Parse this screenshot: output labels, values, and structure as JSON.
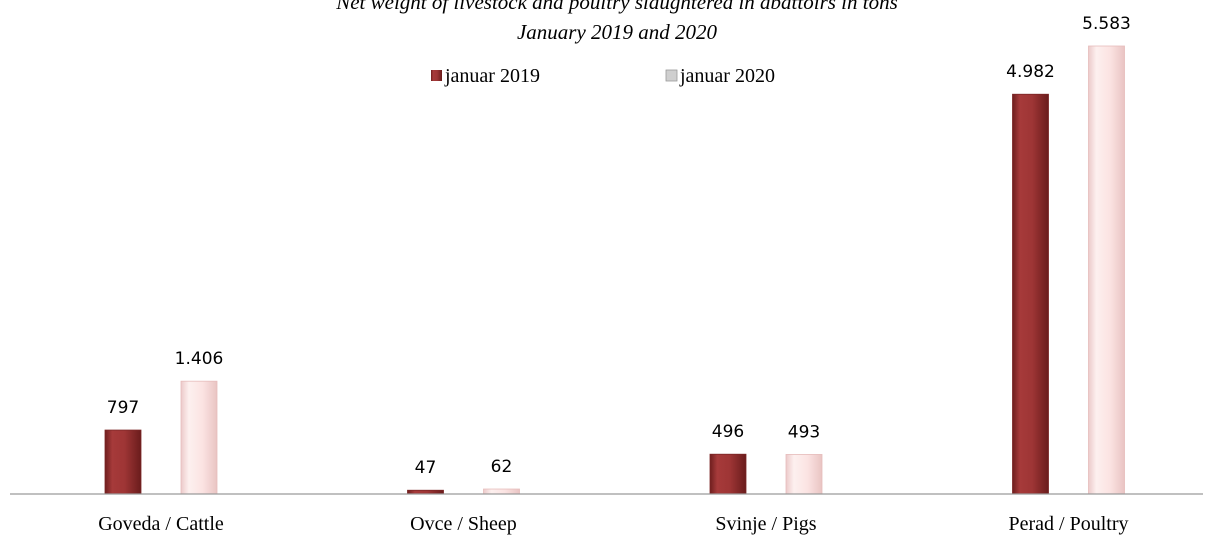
{
  "chart_data": {
    "type": "bar",
    "title_lines": [
      "Net weight of livestock and poultry slaughtered in abattoirs in tons",
      "January 2019 and 2020"
    ],
    "categories": [
      "Goveda / Cattle",
      "Ovce / Sheep",
      "Svinje / Pigs",
      "Perad / Poultry"
    ],
    "series": [
      {
        "name": "januar 2019",
        "values": [
          797,
          47,
          496,
          4982
        ],
        "labels": [
          "797",
          "47",
          "496",
          "4.982"
        ],
        "color": "#9e3535"
      },
      {
        "name": "januar 2020",
        "values": [
          1406,
          62,
          493,
          5583
        ],
        "labels": [
          "1.406",
          "62",
          "493",
          "5.583"
        ],
        "color": "#fbe1e0"
      }
    ],
    "ylim": [
      0,
      5583
    ],
    "grid": false,
    "legend_position": "top-center",
    "xlabel": "",
    "ylabel": ""
  }
}
